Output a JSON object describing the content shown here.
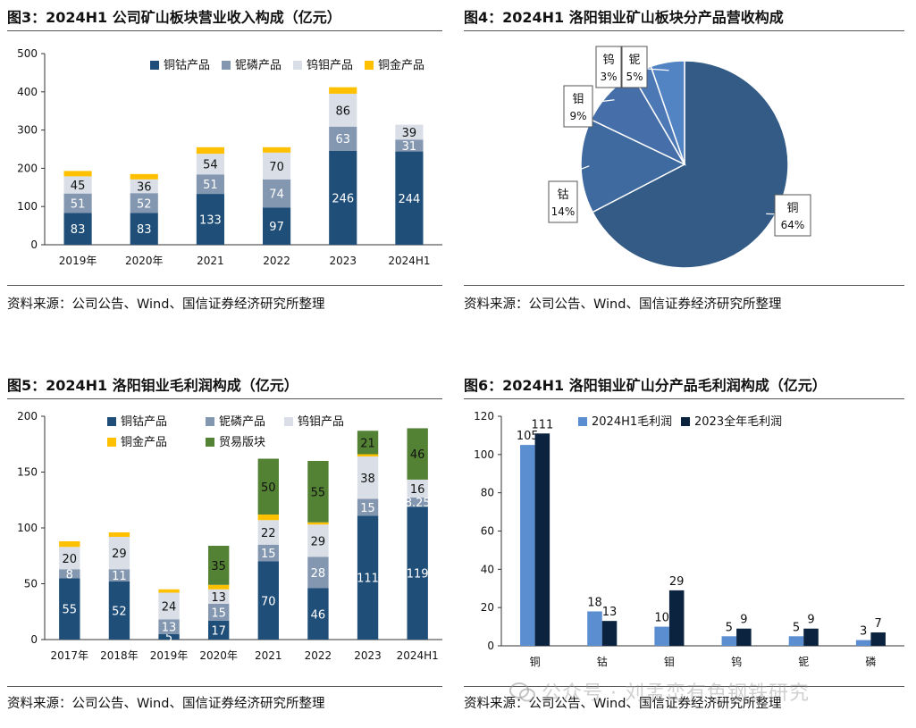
{
  "panels": {
    "fig3": {
      "title": "图3：2024H1 公司矿山板块营业收入构成（亿元）",
      "source": "资料来源：公司公告、Wind、国信证券经济研究所整理"
    },
    "fig4": {
      "title": "图4：2024H1 洛阳钼业矿山板块分产品营收构成",
      "source": "资料来源：公司公告、Wind、国信证券经济研究所整理"
    },
    "fig5": {
      "title": "图5：2024H1 洛阳钼业毛利润构成（亿元）",
      "source": "资料来源：公司公告、Wind、国信证券经济研究所整理"
    },
    "fig6": {
      "title": "图6：2024H1 洛阳钼业矿山分产品毛利润构成（亿元）",
      "source": "资料来源：公司公告、Wind、国信证券经济研究所整理"
    }
  },
  "watermark": {
    "text": "公众号 · 刘孟峦有色钢铁研究"
  },
  "colors": {
    "navy": "#1f4e79",
    "steel": "#8497b0",
    "lightgrey": "#d9dee7",
    "gold": "#ffc000",
    "green": "#548235",
    "blue": "#5b8ed1",
    "darknavy": "#0c2340"
  },
  "chart_data": [
    {
      "id": "fig3",
      "type": "bar",
      "stacked": true,
      "categories": [
        "2019年",
        "2020年",
        "2021",
        "2022",
        "2023",
        "2024H1"
      ],
      "ylim": [
        0,
        500
      ],
      "yticks": [
        0,
        100,
        200,
        300,
        400,
        500
      ],
      "legend_position": "top-right",
      "series": [
        {
          "name": "铜钴产品",
          "color": "#1f4e79",
          "values": [
            83,
            83,
            133,
            97,
            246,
            244
          ],
          "labels": [
            "83",
            "83",
            "133",
            "97",
            "246",
            "244"
          ],
          "label_color": "#ffffff"
        },
        {
          "name": "铌磷产品",
          "color": "#8497b0",
          "values": [
            51,
            52,
            51,
            74,
            63,
            31
          ],
          "labels": [
            "51",
            "52",
            "51",
            "74",
            "63",
            "31"
          ],
          "label_color": "#ffffff"
        },
        {
          "name": "钨钼产品",
          "color": "#d9dee7",
          "values": [
            45,
            36,
            54,
            70,
            86,
            39
          ],
          "labels": [
            "45",
            "36",
            "54",
            "70",
            "86",
            "39"
          ],
          "label_color": "#111111"
        },
        {
          "name": "铜金产品",
          "color": "#ffc000",
          "values": [
            14,
            14,
            17,
            14,
            17,
            0
          ],
          "labels": [
            "",
            "",
            "",
            "",
            "",
            ""
          ],
          "label_color": "#111111"
        }
      ]
    },
    {
      "id": "fig4",
      "type": "pie",
      "slices": [
        {
          "name": "铜",
          "pct": 64,
          "label": "64%",
          "color": "#335b86"
        },
        {
          "name": "钴",
          "pct": 14,
          "label": "14%",
          "color": "#3e6aa0"
        },
        {
          "name": "钼",
          "pct": 9,
          "label": "9%",
          "color": "#466fa9"
        },
        {
          "name": "钨",
          "pct": 3,
          "label": "3%",
          "color": "#4c79b6"
        },
        {
          "name": "铌",
          "pct": 5,
          "label": "5%",
          "color": "#5283c3"
        }
      ]
    },
    {
      "id": "fig5",
      "type": "bar",
      "stacked": true,
      "categories": [
        "2017年",
        "2018年",
        "2019年",
        "2020年",
        "2021",
        "2022",
        "2023",
        "2024H1"
      ],
      "ylim": [
        0,
        200
      ],
      "yticks": [
        0,
        50,
        100,
        150,
        200
      ],
      "legend_position": "top-center",
      "series": [
        {
          "name": "铜钴产品",
          "color": "#1f4e79",
          "values": [
            55,
            52,
            5,
            17,
            70,
            46,
            111,
            119
          ],
          "labels": [
            "55",
            "52",
            "5",
            "17",
            "70",
            "46",
            "111",
            "119"
          ],
          "label_color": "#ffffff"
        },
        {
          "name": "铌磷产品",
          "color": "#8497b0",
          "values": [
            8,
            11,
            13,
            15,
            15,
            28,
            15,
            8.25
          ],
          "labels": [
            "8",
            "11",
            "13",
            "15",
            "15",
            "28",
            "15",
            "8.25"
          ],
          "label_color": "#ffffff"
        },
        {
          "name": "钨钼产品",
          "color": "#d9dee7",
          "values": [
            20,
            29,
            24,
            13,
            22,
            29,
            38,
            16
          ],
          "labels": [
            "20",
            "29",
            "24",
            "13",
            "22",
            "29",
            "38",
            "16"
          ],
          "label_color": "#111111"
        },
        {
          "name": "铜金产品",
          "color": "#ffc000",
          "values": [
            5,
            4,
            3,
            4,
            5,
            2,
            2,
            0
          ],
          "labels": [
            "",
            "",
            "",
            "",
            "",
            "",
            "",
            ""
          ],
          "label_color": "#111111"
        },
        {
          "name": "贸易版块",
          "color": "#548235",
          "values": [
            0,
            0,
            0,
            35,
            50,
            55,
            21,
            46
          ],
          "labels": [
            "",
            "",
            "",
            "35",
            "50",
            "55",
            "21",
            "46"
          ],
          "label_color": "#111111"
        }
      ]
    },
    {
      "id": "fig6",
      "type": "bar",
      "stacked": false,
      "categories": [
        "铜",
        "钴",
        "钼",
        "钨",
        "铌",
        "磷"
      ],
      "ylim": [
        0,
        120
      ],
      "yticks": [
        0,
        20,
        40,
        60,
        80,
        100,
        120
      ],
      "legend_position": "top-center",
      "series": [
        {
          "name": "2024H1毛利润",
          "color": "#5b8ed1",
          "values": [
            105,
            18,
            10,
            5,
            5,
            3
          ],
          "labels": [
            "105",
            "18",
            "10",
            "5",
            "5",
            "3"
          ]
        },
        {
          "name": "2023全年毛利润",
          "color": "#0c2340",
          "values": [
            111,
            13,
            29,
            9,
            9,
            7
          ],
          "labels": [
            "111",
            "13",
            "29",
            "9",
            "9",
            "7"
          ]
        }
      ]
    }
  ]
}
